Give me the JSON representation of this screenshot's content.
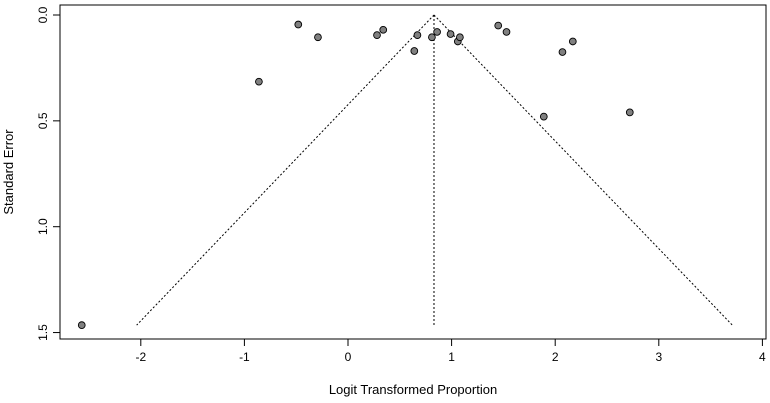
{
  "chart_data": {
    "type": "scatter",
    "title": "",
    "xlabel": "Logit Transformed Proportion",
    "ylabel": "Standard Error",
    "xlim": [
      -2.7,
      4.0
    ],
    "ylim": [
      1.5,
      0.0
    ],
    "y_reversed": true,
    "x_ticks": [
      "-2",
      "-1",
      "0",
      "1",
      "2",
      "3",
      "4"
    ],
    "x_tick_values": [
      -2,
      -1,
      0,
      1,
      2,
      3,
      4
    ],
    "y_ticks": [
      "0.0",
      "0.5",
      "1.0",
      "1.5"
    ],
    "y_tick_values": [
      0.0,
      0.5,
      1.0,
      1.5
    ],
    "grid": false,
    "point_color": "#808080",
    "pooled_estimate": 0.83,
    "funnel": {
      "apex": [
        0.83,
        0.0
      ],
      "left_bottom": [
        -2.04,
        1.465
      ],
      "right_bottom": [
        3.71,
        1.465
      ]
    },
    "points": [
      {
        "x": -2.57,
        "y": 1.465
      },
      {
        "x": -0.86,
        "y": 0.315
      },
      {
        "x": -0.48,
        "y": 0.045
      },
      {
        "x": -0.29,
        "y": 0.105
      },
      {
        "x": 0.28,
        "y": 0.095
      },
      {
        "x": 0.34,
        "y": 0.07
      },
      {
        "x": 0.64,
        "y": 0.17
      },
      {
        "x": 0.67,
        "y": 0.095
      },
      {
        "x": 0.81,
        "y": 0.105
      },
      {
        "x": 0.86,
        "y": 0.08
      },
      {
        "x": 0.99,
        "y": 0.09
      },
      {
        "x": 1.06,
        "y": 0.125
      },
      {
        "x": 1.08,
        "y": 0.105
      },
      {
        "x": 1.45,
        "y": 0.05
      },
      {
        "x": 1.53,
        "y": 0.08
      },
      {
        "x": 1.89,
        "y": 0.48
      },
      {
        "x": 2.07,
        "y": 0.175
      },
      {
        "x": 2.17,
        "y": 0.125
      },
      {
        "x": 2.72,
        "y": 0.46
      }
    ]
  }
}
